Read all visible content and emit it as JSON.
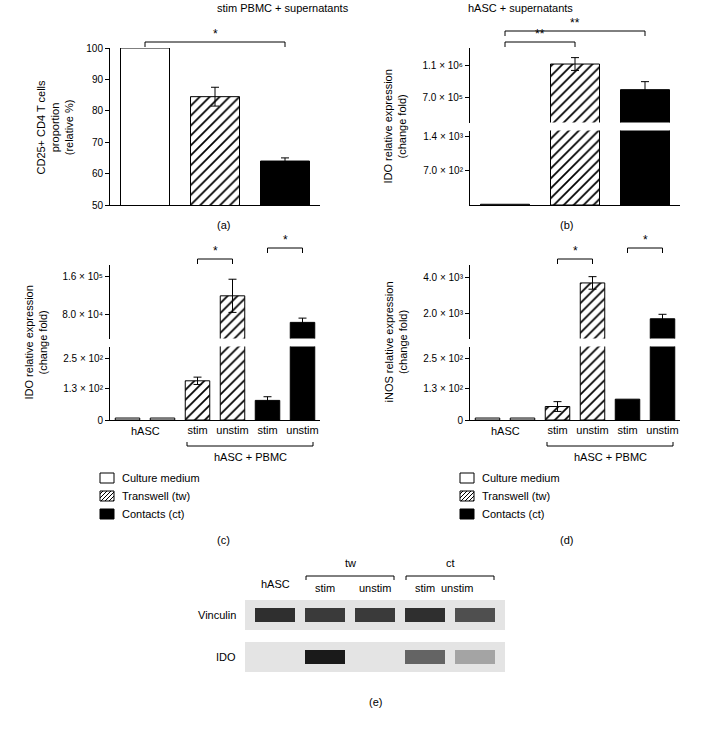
{
  "chart_data": [
    {
      "type": "bar",
      "title": "stim PBMC + supernatants",
      "panel_label": "(a)",
      "ylabel": "CD25+ CD4 T cells\nproportion\n(relative %)",
      "categories": [
        null,
        null,
        null
      ],
      "ylim": [
        50,
        100
      ],
      "yticks": [
        50,
        60,
        70,
        80,
        90,
        100
      ],
      "grid": false,
      "tick_labels": "y",
      "series": [
        {
          "color": "#ffffff",
          "marker": "solid",
          "values": [
            100,
            null,
            null
          ]
        },
        {
          "color": "#000000",
          "marker": "hatched",
          "values": [
            null,
            84.5,
            null
          ],
          "errors": [
            null,
            3,
            null
          ]
        },
        {
          "color": "#000000",
          "marker": "solid",
          "values": [
            null,
            null,
            64
          ],
          "errors": [
            null,
            null,
            1
          ]
        }
      ],
      "significance": [
        {
          "from": 0,
          "to": 2,
          "label": "*"
        }
      ]
    },
    {
      "type": "bar",
      "title": "hASC + supernatants",
      "panel_label": "(b)",
      "ylabel": "IDO relative expression\n(change fold)",
      "categories": [
        null,
        null,
        null
      ],
      "grid": false,
      "tick_labels": "y",
      "y_segments": [
        {
          "ylim": [
            0,
            1530
          ],
          "yticks": [
            {
              "value": 700,
              "label": "7.0 × 10²"
            },
            {
              "value": 1400,
              "label": "1.4 × 10³"
            }
          ]
        },
        {
          "ylim": [
            390000,
            1320000
          ],
          "yticks": [
            {
              "value": 700000,
              "label": "7.0 × 10⁵"
            },
            {
              "value": 1100000,
              "label": "1.1 × 10⁶"
            }
          ]
        }
      ],
      "series": [
        {
          "color": "#ffffff",
          "marker": "solid",
          "values": [
            15,
            null,
            null
          ]
        },
        {
          "color": "#000000",
          "marker": "hatched",
          "values": [
            null,
            1120000,
            null
          ],
          "errors": [
            null,
            80000,
            null
          ]
        },
        {
          "color": "#000000",
          "marker": "solid",
          "values": [
            null,
            null,
            800000
          ],
          "errors": [
            null,
            null,
            100000
          ]
        }
      ],
      "significance": [
        {
          "from": 0,
          "to": 1,
          "label": "**"
        },
        {
          "from": 0,
          "to": 2,
          "label": "**"
        }
      ]
    },
    {
      "type": "bar",
      "panel_label": "(c)",
      "ylabel": "IDO relative expression\n(change fold)",
      "categories": [
        null,
        null,
        "stim",
        "unstim",
        "stim",
        "unstim"
      ],
      "grid": false,
      "legend": "bottom",
      "category_groups": [
        {
          "label": "hASC",
          "from": 0,
          "to": 1
        },
        {
          "label": "hASC + PBMC",
          "from": 2,
          "to": 5
        }
      ],
      "y_segments": [
        {
          "ylim": [
            0,
            300
          ],
          "yticks": [
            0,
            {
              "value": 130,
              "label": "1.3 × 10²"
            },
            {
              "value": 250,
              "label": "2.5 × 10²"
            }
          ]
        },
        {
          "ylim": [
            30000,
            185000
          ],
          "yticks": [
            {
              "value": 80000,
              "label": "8.0 × 10⁴"
            },
            {
              "value": 160000,
              "label": "1.6 × 10⁵"
            }
          ]
        }
      ],
      "series": [
        {
          "name": "Culture medium",
          "color": "#ffffff",
          "marker": "solid",
          "values": [
            8,
            8,
            null,
            null,
            null,
            null
          ]
        },
        {
          "name": "Transwell (tw)",
          "color": "#000000",
          "marker": "hatched",
          "values": [
            null,
            null,
            160,
            120000,
            null,
            null
          ],
          "errors": [
            null,
            null,
            15,
            35000,
            null,
            null
          ]
        },
        {
          "name": "Contacts (ct)",
          "color": "#000000",
          "marker": "solid",
          "values": [
            null,
            null,
            null,
            null,
            80,
            64000
          ],
          "errors": [
            null,
            null,
            null,
            null,
            15,
            9000
          ]
        }
      ],
      "significance": [
        {
          "from": 2,
          "to": 3,
          "label": "*"
        },
        {
          "from": 4,
          "to": 5,
          "label": "*"
        }
      ]
    },
    {
      "type": "bar",
      "panel_label": "(d)",
      "ylabel": "iNOS relative expression\n(change fold)",
      "categories": [
        null,
        null,
        "stim",
        "unstim",
        "stim",
        "unstim"
      ],
      "grid": false,
      "legend": "bottom",
      "category_groups": [
        {
          "label": "hASC",
          "from": 0,
          "to": 1
        },
        {
          "label": "hASC + PBMC",
          "from": 2,
          "to": 5
        }
      ],
      "y_segments": [
        {
          "ylim": [
            0,
            300
          ],
          "yticks": [
            0,
            {
              "value": 130,
              "label": "1.3 × 10²"
            },
            {
              "value": 250,
              "label": "2.5 × 10²"
            }
          ]
        },
        {
          "ylim": [
            600,
            4700
          ],
          "yticks": [
            {
              "value": 2000,
              "label": "2.0 × 10³"
            },
            {
              "value": 4000,
              "label": "4.0 × 10³"
            }
          ]
        }
      ],
      "series": [
        {
          "name": "Culture medium",
          "color": "#ffffff",
          "marker": "solid",
          "values": [
            8,
            8,
            null,
            null,
            null,
            null
          ]
        },
        {
          "name": "Transwell (tw)",
          "color": "#000000",
          "marker": "hatched",
          "values": [
            null,
            null,
            55,
            3700,
            null,
            null
          ],
          "errors": [
            null,
            null,
            20,
            350,
            null,
            null
          ]
        },
        {
          "name": "Contacts (ct)",
          "color": "#000000",
          "marker": "solid",
          "values": [
            null,
            null,
            null,
            null,
            85,
            1700
          ],
          "errors": [
            null,
            null,
            null,
            null,
            null,
            250
          ]
        }
      ],
      "significance": [
        {
          "from": 2,
          "to": 3,
          "label": "*"
        },
        {
          "from": 4,
          "to": 5,
          "label": "*"
        }
      ]
    },
    {
      "type": "blot",
      "panel_label": "(e)",
      "lane_groups": [
        {
          "label": "hASC",
          "lanes": [
            null
          ]
        },
        {
          "label": "tw",
          "lanes": [
            "stim",
            "unstim"
          ]
        },
        {
          "label": "ct",
          "lanes": [
            "stim",
            "unstim"
          ]
        }
      ],
      "rows": [
        {
          "label": "Vinculin",
          "band_intensity": [
            0.85,
            0.8,
            0.8,
            0.85,
            0.7
          ]
        },
        {
          "label": "IDO",
          "band_intensity": [
            0,
            0.95,
            0,
            0.6,
            0.3
          ]
        }
      ]
    }
  ]
}
